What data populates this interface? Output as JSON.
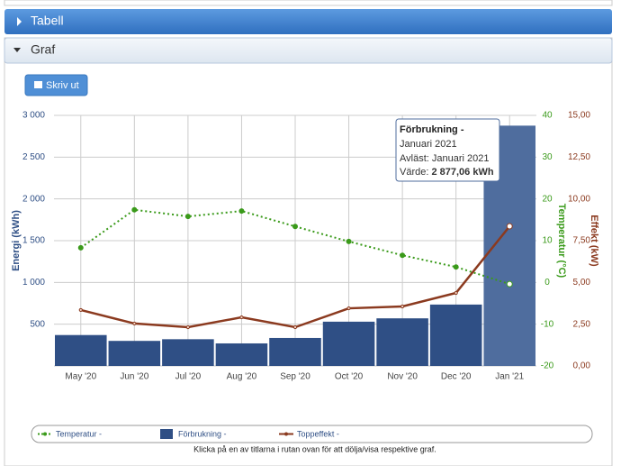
{
  "panels": {
    "table_title": "Tabell",
    "chart_title": "Graf",
    "print_button": "Skriv ut",
    "footnote": "Klicka på en av titlarna i rutan ovan för att dölja/visa respektive graf."
  },
  "chart_data": {
    "type": "bar",
    "categories": [
      "May '20",
      "Jun '20",
      "Jul '20",
      "Aug '20",
      "Sep '20",
      "Oct '20",
      "Nov '20",
      "Dec '20",
      "Jan '21"
    ],
    "ylabel": "Energi (kWh)",
    "y2label": "Temperatur (°C)",
    "y3label": "Effekt (kW)",
    "ylim": [
      0,
      3000
    ],
    "yticks": [
      {
        "value": 500,
        "label": "500"
      },
      {
        "value": 1000,
        "label": "1 000"
      },
      {
        "value": 1500,
        "label": "1 500"
      },
      {
        "value": 2000,
        "label": "2 000"
      },
      {
        "value": 2500,
        "label": "2 500"
      },
      {
        "value": 3000,
        "label": "3 000"
      }
    ],
    "y2lim": [
      -20,
      40
    ],
    "y2ticks": [
      -20,
      -10,
      0,
      10,
      20,
      30,
      40
    ],
    "y3lim": [
      0,
      15
    ],
    "y3ticks": [
      {
        "value": 0,
        "label": "0,00"
      },
      {
        "value": 2.5,
        "label": "2,50"
      },
      {
        "value": 5,
        "label": "5,00"
      },
      {
        "value": 7.5,
        "label": "7,50"
      },
      {
        "value": 10,
        "label": "10,00"
      },
      {
        "value": 12.5,
        "label": "12,50"
      },
      {
        "value": 15,
        "label": "15,00"
      }
    ],
    "grid": true,
    "series": [
      {
        "name": "Förbrukning -",
        "type": "bar",
        "color": "#2f4f85",
        "highlight_color": "#4f6d9e",
        "values": [
          370,
          300,
          320,
          270,
          335,
          530,
          570,
          735,
          2877.06
        ]
      },
      {
        "name": "Temperatur -",
        "type": "line",
        "dash": true,
        "axis": "y2",
        "color": "#3a9a1a",
        "values": [
          8.3,
          17.4,
          15.8,
          17.1,
          13.4,
          9.8,
          6.5,
          3.7,
          -0.4
        ]
      },
      {
        "name": "Toppeffekt -",
        "type": "line",
        "axis": "y3",
        "color": "#8b3a1f",
        "values": [
          3.35,
          2.54,
          2.32,
          2.91,
          2.32,
          3.45,
          3.56,
          4.37,
          8.36
        ]
      }
    ],
    "tooltip": {
      "title": "Förbrukning -",
      "period": "Januari 2021",
      "read": "Avläst: Januari 2021",
      "value_prefix": "Värde: ",
      "value": "2 877,06 kWh"
    }
  }
}
